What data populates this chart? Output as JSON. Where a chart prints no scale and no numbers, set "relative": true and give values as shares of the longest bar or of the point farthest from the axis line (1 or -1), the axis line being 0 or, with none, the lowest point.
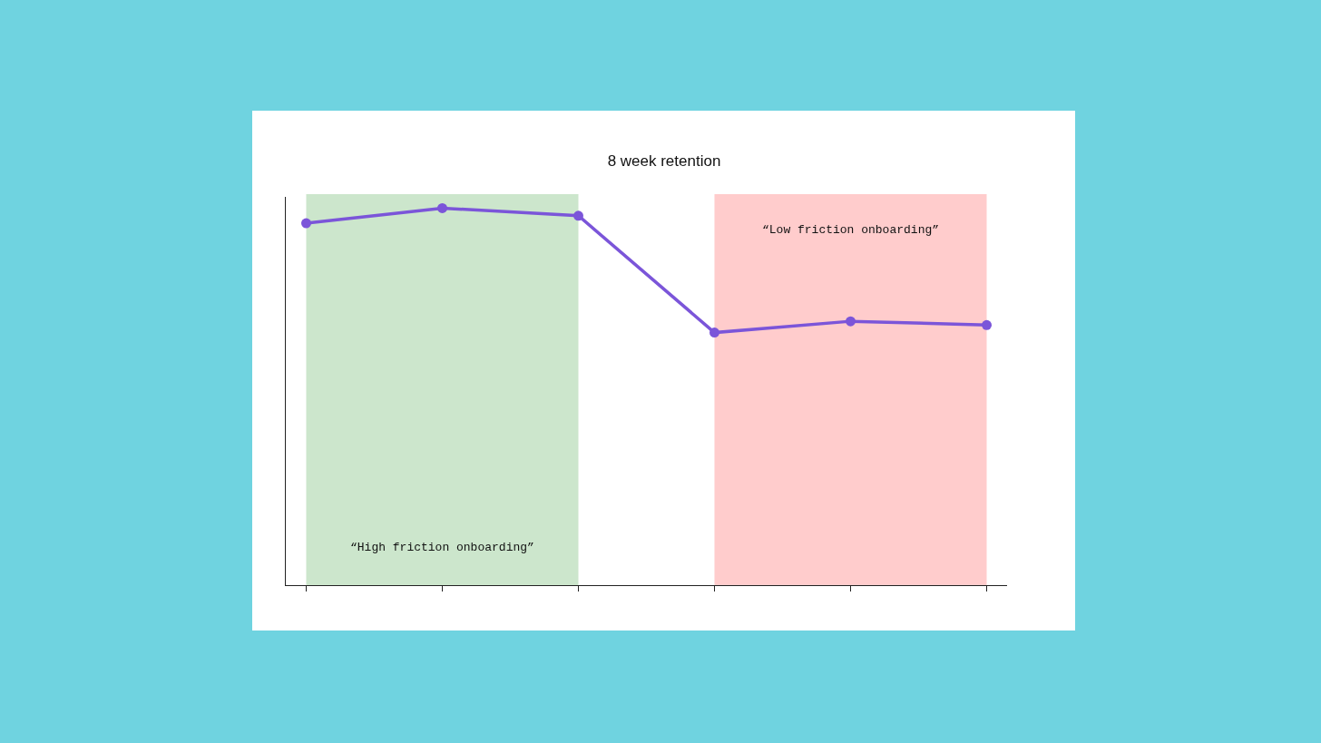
{
  "chart_data": {
    "type": "line",
    "title": "8 week retention",
    "categories": [
      null,
      null,
      null,
      null,
      null,
      null
    ],
    "relative": true,
    "series": [
      {
        "color": "#7b55d9",
        "values": [
          0.96,
          1,
          0.98,
          0.67,
          0.7,
          0.69
        ]
      }
    ],
    "annotations": [
      "“High friction onboarding”",
      "“Low friction onboarding”"
    ],
    "marker": "circle",
    "line_style": "solid"
  }
}
